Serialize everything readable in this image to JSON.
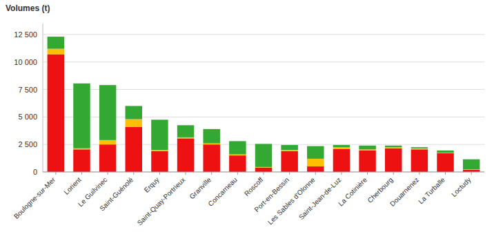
{
  "chart_data": {
    "type": "bar",
    "stacked": true,
    "ylabel": "Volumes (t)",
    "categories": [
      "Boulogne-sur-Mer",
      "Lorient",
      "Le Guilvinec",
      "Saint-Guénolé",
      "Erquy",
      "Saint-Quay-Portrieux",
      "Granville",
      "Concarneau",
      "Roscoff",
      "Port-en-Bessin",
      "Les Sables d'Olonne",
      "Saint-Jean-de-Luz",
      "La Cotinière",
      "Cherbourg",
      "Douarnenez",
      "La Turballe",
      "Loctudy"
    ],
    "series": [
      {
        "color": "#EE1111",
        "values": [
          10700,
          2050,
          2500,
          4100,
          1900,
          3050,
          2500,
          1500,
          400,
          1900,
          500,
          2100,
          1950,
          2150,
          2050,
          1700,
          200
        ]
      },
      {
        "color": "#FFC000",
        "values": [
          500,
          100,
          400,
          700,
          100,
          100,
          100,
          100,
          50,
          100,
          700,
          150,
          100,
          100,
          100,
          50,
          50
        ]
      },
      {
        "color": "#33A832",
        "values": [
          1100,
          5900,
          5000,
          1200,
          2750,
          1100,
          1300,
          1200,
          2100,
          450,
          1150,
          200,
          350,
          150,
          100,
          200,
          900
        ]
      }
    ],
    "ylim": [
      0,
      13500
    ],
    "yticks": [
      0,
      {
        "value": 2500,
        "label": "2 500"
      },
      {
        "value": 5000,
        "label": "5 000"
      },
      {
        "value": 7500,
        "label": "7 500"
      },
      {
        "value": 10000,
        "label": "10 000"
      },
      {
        "value": 12500,
        "label": "12 500"
      }
    ],
    "grid": true
  }
}
